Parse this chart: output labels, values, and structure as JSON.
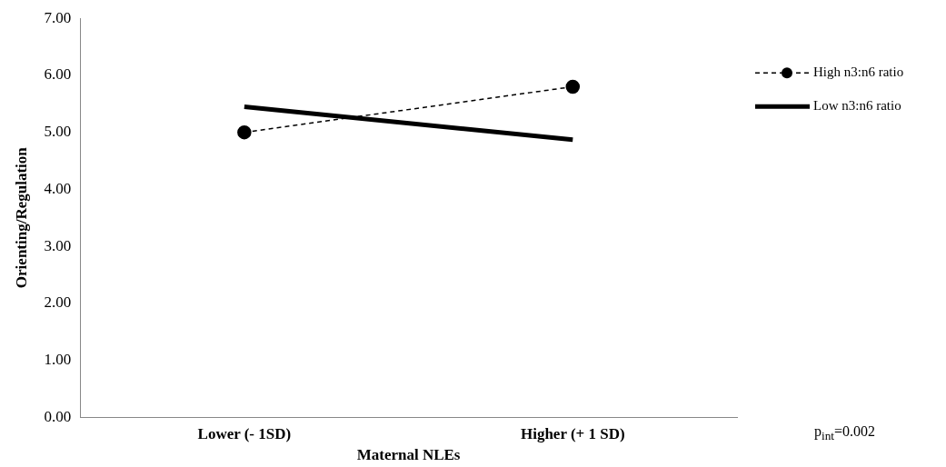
{
  "chart_data": {
    "type": "line",
    "xlabel": "Maternal NLEs",
    "ylabel": "Orienting/Regulation",
    "categories": [
      "Lower (- 1SD)",
      "Higher (+ 1 SD)"
    ],
    "series": [
      {
        "name": "High n3:n6 ratio",
        "color": "#000000",
        "values": [
          5.0,
          5.8
        ],
        "marker": "circle",
        "line_style": "dashed"
      },
      {
        "name": "Low n3:n6 ratio",
        "color": "#000000",
        "values": [
          5.45,
          4.87
        ],
        "marker": "none",
        "line_style": "solid"
      }
    ],
    "ylim": [
      0,
      7
    ],
    "yticks": [
      {
        "value": 0,
        "label": "0.00"
      },
      {
        "value": 1,
        "label": "1.00"
      },
      {
        "value": 2,
        "label": "2.00"
      },
      {
        "value": 3,
        "label": "3.00"
      },
      {
        "value": 4,
        "label": "4.00"
      },
      {
        "value": 5,
        "label": "5.00"
      },
      {
        "value": 6,
        "label": "6.00"
      },
      {
        "value": 7,
        "label": "7.00"
      }
    ],
    "grid": false,
    "legend": "right",
    "annotations": [
      "p$_{int}$=0.002"
    ]
  }
}
